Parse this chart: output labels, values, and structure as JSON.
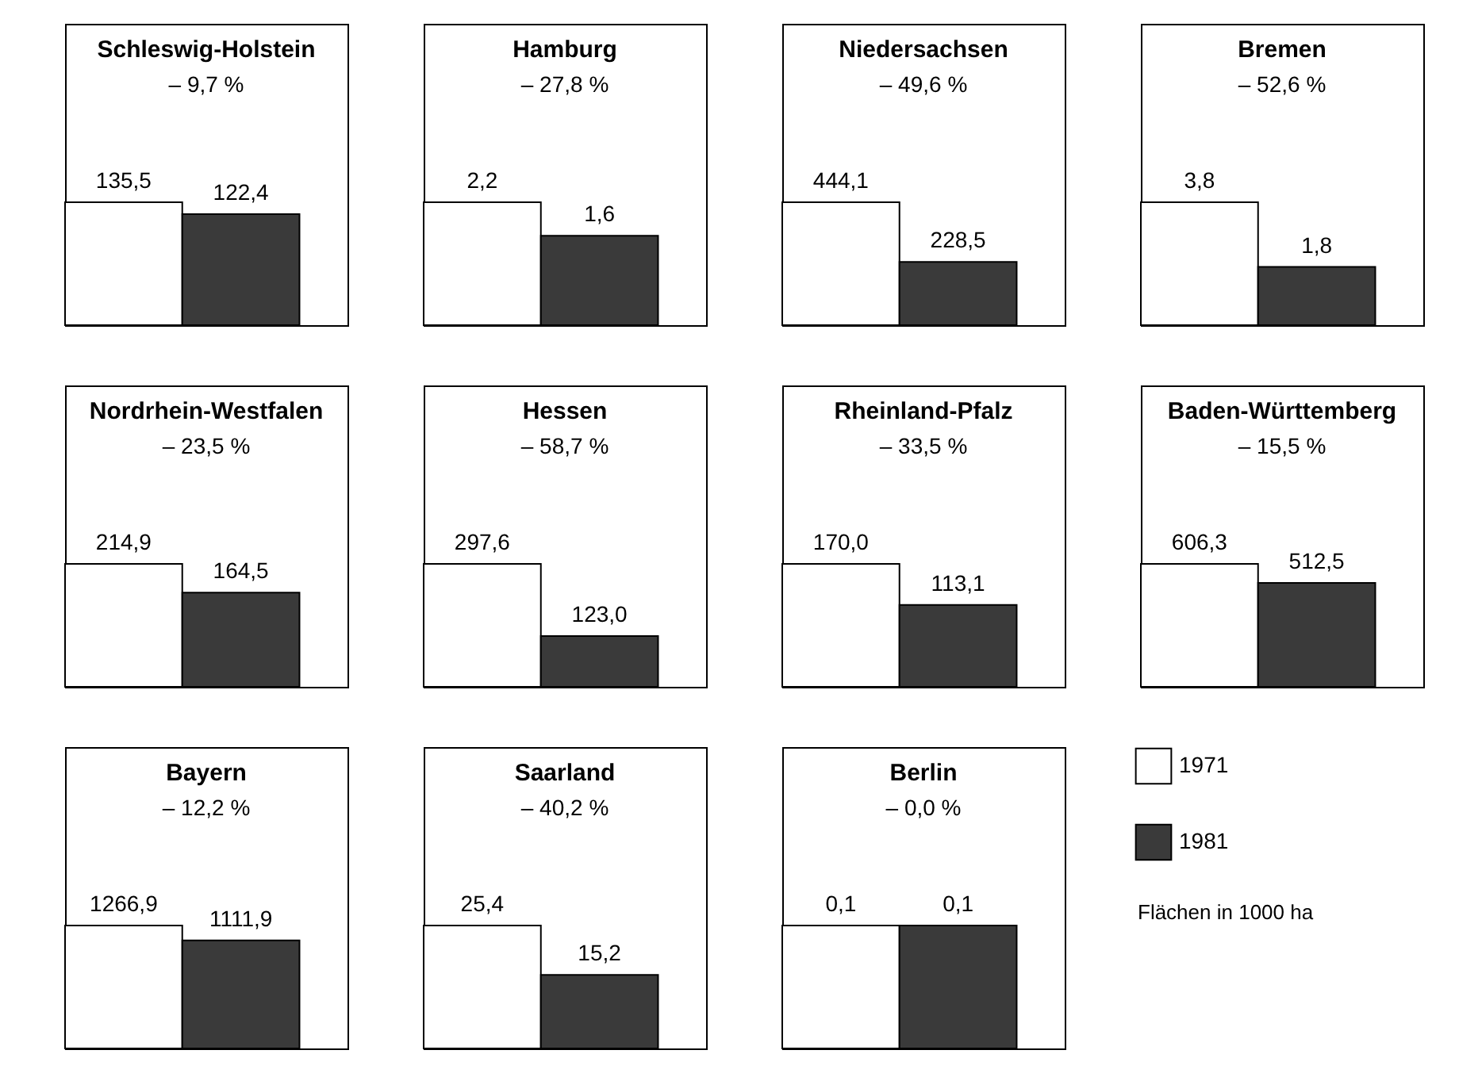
{
  "chart_data": [
    {
      "type": "bar",
      "title": "Schleswig-Holstein",
      "subtitle": "– 9,7 %",
      "categories": [
        null
      ],
      "series": [
        {
          "color": "#ffffff",
          "values": [
            135.5
          ],
          "value_labels": [
            "135,5"
          ]
        },
        {
          "color": "#3a3a3a",
          "values": [
            122.4
          ],
          "value_labels": [
            "122,4"
          ]
        }
      ]
    },
    {
      "type": "bar",
      "title": "Hamburg",
      "subtitle": "– 27,8 %",
      "categories": [
        null
      ],
      "series": [
        {
          "color": "#ffffff",
          "values": [
            2.2
          ],
          "value_labels": [
            "2,2"
          ]
        },
        {
          "color": "#3a3a3a",
          "values": [
            1.6
          ],
          "value_labels": [
            "1,6"
          ]
        }
      ]
    },
    {
      "type": "bar",
      "title": "Niedersachsen",
      "subtitle": "– 49,6 %",
      "categories": [
        null
      ],
      "series": [
        {
          "color": "#ffffff",
          "values": [
            444.1
          ],
          "value_labels": [
            "444,1"
          ]
        },
        {
          "color": "#3a3a3a",
          "values": [
            228.5
          ],
          "value_labels": [
            "228,5"
          ]
        }
      ]
    },
    {
      "type": "bar",
      "title": "Bremen",
      "subtitle": "– 52,6 %",
      "categories": [
        null
      ],
      "series": [
        {
          "color": "#ffffff",
          "values": [
            3.8
          ],
          "value_labels": [
            "3,8"
          ]
        },
        {
          "color": "#3a3a3a",
          "values": [
            1.8
          ],
          "value_labels": [
            "1,8"
          ]
        }
      ]
    },
    {
      "type": "bar",
      "title": "Nordrhein-Westfalen",
      "subtitle": "– 23,5 %",
      "categories": [
        null
      ],
      "series": [
        {
          "color": "#ffffff",
          "values": [
            214.9
          ],
          "value_labels": [
            "214,9"
          ]
        },
        {
          "color": "#3a3a3a",
          "values": [
            164.5
          ],
          "value_labels": [
            "164,5"
          ]
        }
      ]
    },
    {
      "type": "bar",
      "title": "Hessen",
      "subtitle": "– 58,7 %",
      "categories": [
        null
      ],
      "series": [
        {
          "color": "#ffffff",
          "values": [
            297.6
          ],
          "value_labels": [
            "297,6"
          ]
        },
        {
          "color": "#3a3a3a",
          "values": [
            123.0
          ],
          "value_labels": [
            "123,0"
          ]
        }
      ]
    },
    {
      "type": "bar",
      "title": "Rheinland-Pfalz",
      "subtitle": "– 33,5 %",
      "categories": [
        null
      ],
      "series": [
        {
          "color": "#ffffff",
          "values": [
            170.0
          ],
          "value_labels": [
            "170,0"
          ]
        },
        {
          "color": "#3a3a3a",
          "values": [
            113.1
          ],
          "value_labels": [
            "113,1"
          ]
        }
      ]
    },
    {
      "type": "bar",
      "title": "Baden-Württemberg",
      "subtitle": "– 15,5 %",
      "categories": [
        null
      ],
      "series": [
        {
          "color": "#ffffff",
          "values": [
            606.3
          ],
          "value_labels": [
            "606,3"
          ]
        },
        {
          "color": "#3a3a3a",
          "values": [
            512.5
          ],
          "value_labels": [
            "512,5"
          ]
        }
      ]
    },
    {
      "type": "bar",
      "title": "Bayern",
      "subtitle": "– 12,2 %",
      "categories": [
        null
      ],
      "series": [
        {
          "color": "#ffffff",
          "values": [
            1266.9
          ],
          "value_labels": [
            "1266,9"
          ]
        },
        {
          "color": "#3a3a3a",
          "values": [
            1111.9
          ],
          "value_labels": [
            "1111,9"
          ]
        }
      ]
    },
    {
      "type": "bar",
      "title": "Saarland",
      "subtitle": "– 40,2 %",
      "categories": [
        null
      ],
      "series": [
        {
          "color": "#ffffff",
          "values": [
            25.4
          ],
          "value_labels": [
            "25,4"
          ]
        },
        {
          "color": "#3a3a3a",
          "values": [
            15.2
          ],
          "value_labels": [
            "15,2"
          ]
        }
      ]
    },
    {
      "type": "bar",
      "title": "Berlin",
      "subtitle": "– 0,0 %",
      "categories": [
        null
      ],
      "legend": "right",
      "annotations": [
        "Flächen in 1000 ha"
      ],
      "series": [
        {
          "name": "1971",
          "color": "#ffffff",
          "values": [
            0.1
          ],
          "value_labels": [
            "0,1"
          ]
        },
        {
          "name": "1981",
          "color": "#3a3a3a",
          "values": [
            0.1
          ],
          "value_labels": [
            "0,1"
          ]
        }
      ]
    }
  ]
}
